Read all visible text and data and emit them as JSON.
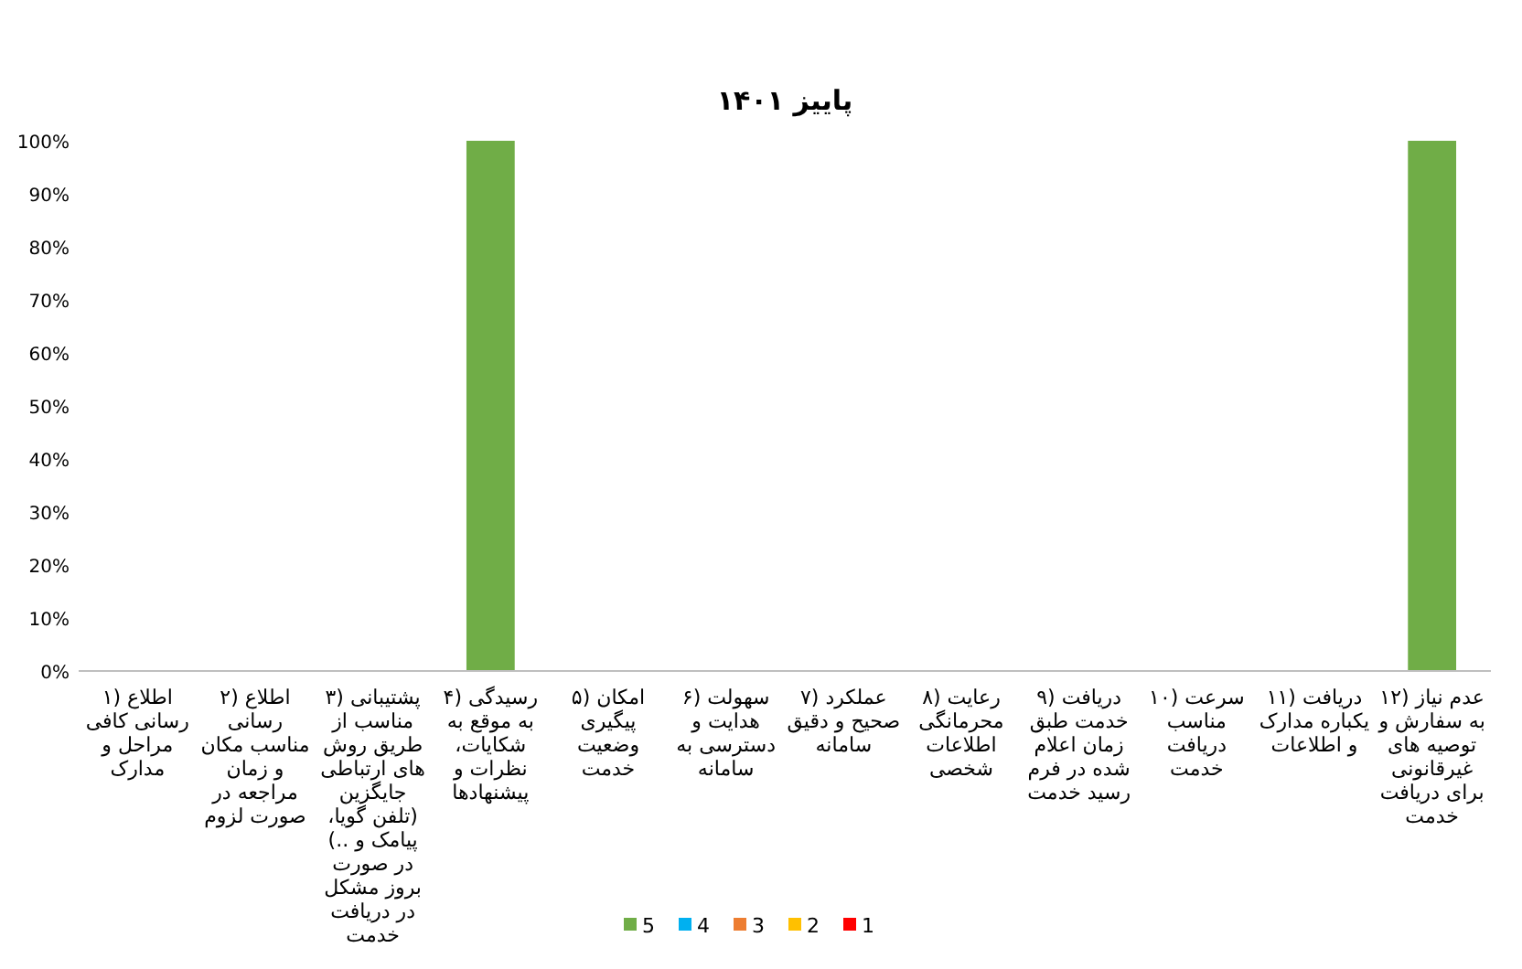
{
  "chart_data": {
    "type": "bar",
    "title": "پاییز ۱۴۰۱",
    "stacked": true,
    "categories": [
      "۱) اطلاع رسانی کافی مراحل و مدارک",
      "۲) اطلاع رسانی مناسب مکان و زمان مراجعه در صورت لزوم",
      "۳) پشتیبانی مناسب از طریق روش های ارتباطی جایگزین (تلفن گویا، پیامک و ..) در صورت بروز مشکل در دریافت خدمت",
      "۴) رسیدگی به موقع به شکایات، نظرات و پیشنهادها",
      "۵) امکان پیگیری وضعیت خدمت",
      "۶) سهولت هدایت و دسترسی به سامانه",
      "۷) عملکرد صحیح و دقیق سامانه",
      "۸) رعایت محرمانگی اطلاعات شخصی",
      "۹) دریافت خدمت طبق زمان اعلام شده در فرم رسید خدمت",
      "۱۰) سرعت مناسب دریافت خدمت",
      "۱۱) دریافت یکباره مدارک و اطلاعات",
      "۱۲) عدم نیاز به سفارش و توصیه های غیرقانونی برای دریافت خدمت"
    ],
    "series": [
      {
        "name": "1",
        "color": "#ff0000",
        "values": [
          0,
          0,
          0,
          0,
          0,
          0,
          0,
          0,
          0,
          0,
          0,
          0
        ]
      },
      {
        "name": "2",
        "color": "#ffc000",
        "values": [
          0,
          0,
          0,
          0,
          0,
          0,
          0,
          0,
          0,
          0,
          0,
          0
        ]
      },
      {
        "name": "3",
        "color": "#ed7d31",
        "values": [
          0,
          0,
          0,
          0,
          0,
          0,
          0,
          0,
          0,
          0,
          0,
          0
        ]
      },
      {
        "name": "4",
        "color": "#00b0f0",
        "values": [
          0,
          0,
          0,
          0,
          0,
          0,
          0,
          0,
          0,
          0,
          0,
          0
        ]
      },
      {
        "name": "5",
        "color": "#70ad47",
        "values": [
          0,
          0,
          0,
          100,
          0,
          0,
          0,
          0,
          0,
          0,
          0,
          100
        ]
      }
    ],
    "ylim": [
      0,
      100
    ],
    "yticks": [
      {
        "value": 0,
        "label": "0%"
      },
      {
        "value": 10,
        "label": "10%"
      },
      {
        "value": 20,
        "label": "20%"
      },
      {
        "value": 30,
        "label": "30%"
      },
      {
        "value": 40,
        "label": "40%"
      },
      {
        "value": 50,
        "label": "50%"
      },
      {
        "value": 60,
        "label": "60%"
      },
      {
        "value": 70,
        "label": "70%"
      },
      {
        "value": 80,
        "label": "80%"
      },
      {
        "value": 90,
        "label": "90%"
      },
      {
        "value": 100,
        "label": "100%"
      }
    ],
    "grid": false,
    "legend": "bottom"
  }
}
